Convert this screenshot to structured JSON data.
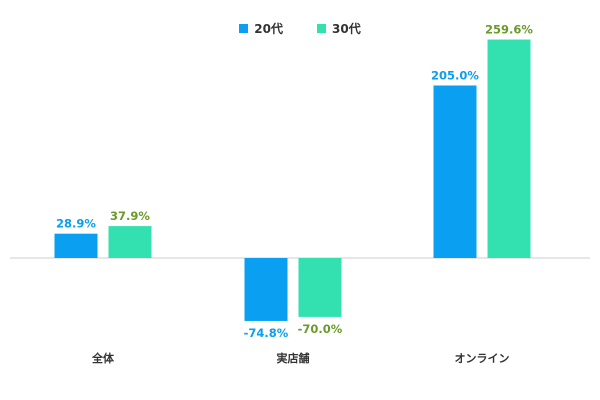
{
  "colors": {
    "series_20": "#0a9ff0",
    "series_30": "#33e0b0",
    "label_20": "#0a9ff0",
    "label_30": "#6a9a2a",
    "axis": "#cccccc"
  },
  "legend": {
    "items": [
      {
        "name": "20代",
        "color": "#0a9ff0"
      },
      {
        "name": "30代",
        "color": "#33e0b0"
      }
    ]
  },
  "chart_data": {
    "type": "bar",
    "categories": [
      "全体",
      "実店舗",
      "オンライン"
    ],
    "series": [
      {
        "name": "20代",
        "values": [
          28.9,
          -74.8,
          205.0
        ],
        "labels": [
          "28.9%",
          "-74.8%",
          "205.0%"
        ]
      },
      {
        "name": "30代",
        "values": [
          37.9,
          -70.0,
          259.6
        ],
        "labels": [
          "37.9%",
          "-70.0%",
          "259.6%"
        ]
      }
    ],
    "title": "",
    "xlabel": "",
    "ylabel": "",
    "ylim": [
      -80,
      260
    ],
    "grid": false,
    "legend_position": "top-center"
  }
}
